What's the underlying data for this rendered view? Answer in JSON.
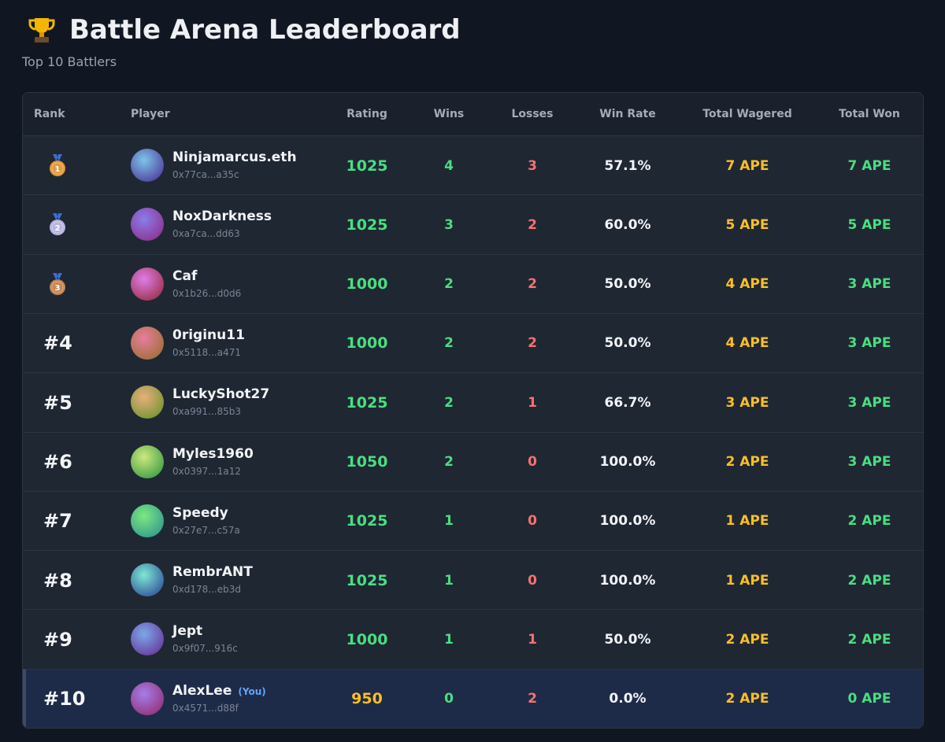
{
  "header": {
    "title": "Battle Arena Leaderboard",
    "subtitle": "Top 10 Battlers"
  },
  "table": {
    "columns": [
      "Rank",
      "Player",
      "Rating",
      "Wins",
      "Losses",
      "Win Rate",
      "Total Wagered",
      "Total Won"
    ],
    "rows": [
      {
        "rank": "1",
        "name": "Ninjamarcus.eth",
        "address": "0x77ca...a35c",
        "rating": "1025",
        "wins": "4",
        "losses": "3",
        "win_rate": "57.1%",
        "wagered": "7 APE",
        "won": "7 APE"
      },
      {
        "rank": "2",
        "name": "NoxDarkness",
        "address": "0xa7ca...dd63",
        "rating": "1025",
        "wins": "3",
        "losses": "2",
        "win_rate": "60.0%",
        "wagered": "5 APE",
        "won": "5 APE"
      },
      {
        "rank": "3",
        "name": "Caf",
        "address": "0x1b26...d0d6",
        "rating": "1000",
        "wins": "2",
        "losses": "2",
        "win_rate": "50.0%",
        "wagered": "4 APE",
        "won": "3 APE"
      },
      {
        "rank": "#4",
        "name": "0riginu11",
        "address": "0x5118...a471",
        "rating": "1000",
        "wins": "2",
        "losses": "2",
        "win_rate": "50.0%",
        "wagered": "4 APE",
        "won": "3 APE"
      },
      {
        "rank": "#5",
        "name": "LuckyShot27",
        "address": "0xa991...85b3",
        "rating": "1025",
        "wins": "2",
        "losses": "1",
        "win_rate": "66.7%",
        "wagered": "3 APE",
        "won": "3 APE"
      },
      {
        "rank": "#6",
        "name": "Myles1960",
        "address": "0x0397...1a12",
        "rating": "1050",
        "wins": "2",
        "losses": "0",
        "win_rate": "100.0%",
        "wagered": "2 APE",
        "won": "3 APE"
      },
      {
        "rank": "#7",
        "name": "Speedy",
        "address": "0x27e7...c57a",
        "rating": "1025",
        "wins": "1",
        "losses": "0",
        "win_rate": "100.0%",
        "wagered": "1 APE",
        "won": "2 APE"
      },
      {
        "rank": "#8",
        "name": "RembrANT",
        "address": "0xd178...eb3d",
        "rating": "1025",
        "wins": "1",
        "losses": "0",
        "win_rate": "100.0%",
        "wagered": "1 APE",
        "won": "2 APE"
      },
      {
        "rank": "#9",
        "name": "Jept",
        "address": "0x9f07...916c",
        "rating": "1000",
        "wins": "1",
        "losses": "1",
        "win_rate": "50.0%",
        "wagered": "2 APE",
        "won": "2 APE"
      },
      {
        "rank": "#10",
        "name": "AlexLee",
        "you_label": "(You)",
        "address": "0x4571...d88f",
        "rating": "950",
        "wins": "0",
        "losses": "2",
        "win_rate": "0.0%",
        "wagered": "2 APE",
        "won": "0 APE"
      }
    ]
  }
}
